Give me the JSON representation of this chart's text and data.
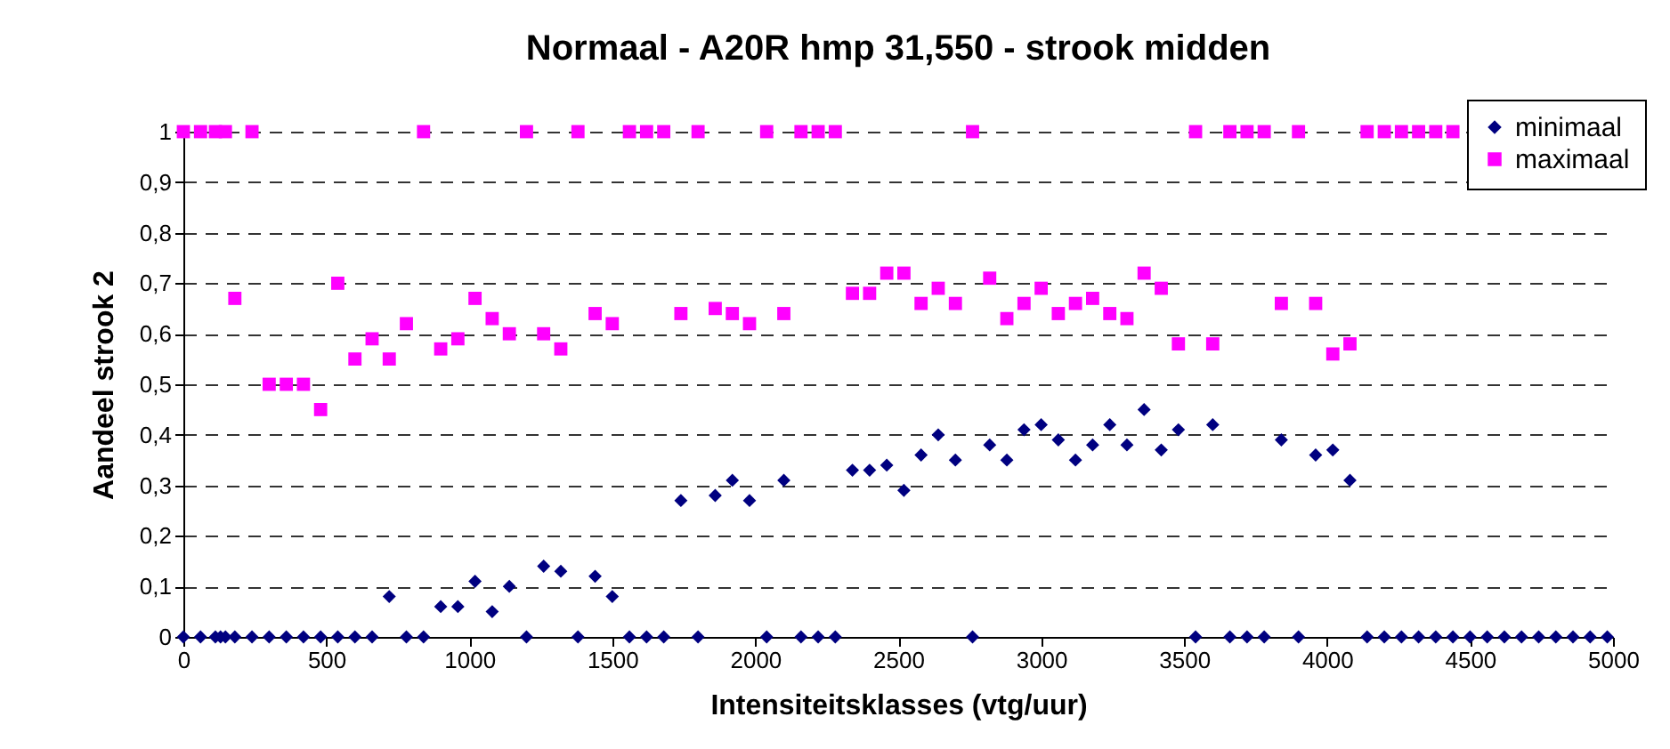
{
  "chart_data": {
    "type": "scatter",
    "title": "Normaal - A20R hmp 31,550 - strook midden",
    "xlabel": "Intensiteitsklasses (vtg/uur)",
    "ylabel": "Aandeel strook 2",
    "x": [
      0,
      60,
      112,
      130,
      147,
      180,
      240,
      300,
      360,
      420,
      480,
      540,
      600,
      660,
      720,
      780,
      840,
      900,
      960,
      1020,
      1080,
      1140,
      1200,
      1260,
      1320,
      1380,
      1440,
      1500,
      1560,
      1620,
      1680,
      1740,
      1800,
      1860,
      1920,
      1980,
      2040,
      2100,
      2160,
      2220,
      2280,
      2340,
      2400,
      2460,
      2520,
      2580,
      2640,
      2700,
      2760,
      2820,
      2880,
      2940,
      3000,
      3060,
      3120,
      3180,
      3240,
      3300,
      3360,
      3420,
      3480,
      3540,
      3600,
      3660,
      3720,
      3780,
      3840,
      3900,
      3960,
      4020,
      4080,
      4140,
      4200,
      4260,
      4320,
      4380,
      4440,
      4500,
      4560,
      4620,
      4680,
      4740,
      4800,
      4860,
      4920,
      4980
    ],
    "series": [
      {
        "name": "minimaal",
        "color": "#000080",
        "marker": "diamond",
        "values": [
          0,
          0,
          0,
          0,
          0,
          0,
          0,
          0,
          0,
          0,
          0,
          0,
          0,
          0,
          0.08,
          0,
          0,
          0.06,
          0.06,
          0.11,
          0.05,
          0.1,
          0,
          0.14,
          0.13,
          0,
          0.12,
          0.08,
          0,
          0,
          0,
          0.27,
          0,
          0.28,
          0.31,
          0.27,
          0,
          0.31,
          0,
          0,
          0,
          0.33,
          0.33,
          0.34,
          0.29,
          0.36,
          0.4,
          0.35,
          0,
          0.38,
          0.35,
          0.41,
          0.42,
          0.39,
          0.35,
          0.38,
          0.42,
          0.38,
          0.45,
          0.37,
          0.41,
          0,
          0.42,
          0,
          0,
          0,
          0.39,
          0,
          0.36,
          0.37,
          0.31,
          0,
          0,
          0,
          0,
          0,
          0,
          0,
          0,
          0,
          0,
          0,
          0,
          0,
          0,
          0
        ]
      },
      {
        "name": "maximaal",
        "color": "#ff00ff",
        "marker": "square",
        "values": [
          1,
          1,
          1,
          null,
          1,
          0.67,
          1,
          0.5,
          0.5,
          0.5,
          0.45,
          0.7,
          0.55,
          0.59,
          0.55,
          0.62,
          1,
          0.57,
          0.59,
          0.67,
          0.63,
          0.6,
          1,
          0.6,
          0.57,
          1,
          0.64,
          0.62,
          1,
          1,
          1,
          0.64,
          1,
          0.65,
          0.64,
          0.62,
          1,
          0.64,
          1,
          1,
          1,
          0.68,
          0.68,
          0.72,
          0.72,
          0.66,
          0.69,
          0.66,
          1,
          0.71,
          0.63,
          0.66,
          0.69,
          0.64,
          0.66,
          0.67,
          0.64,
          0.63,
          0.72,
          0.69,
          0.58,
          1,
          0.58,
          1,
          1,
          1,
          0.66,
          1,
          0.66,
          0.56,
          0.58,
          1,
          1,
          1,
          1,
          1,
          1,
          null,
          null,
          null,
          null,
          null,
          null,
          null,
          null,
          null
        ]
      }
    ],
    "xlim": [
      0,
      5000
    ],
    "xticks": [
      0,
      500,
      1000,
      1500,
      2000,
      2500,
      3000,
      3500,
      4000,
      4500,
      5000
    ],
    "ylim": [
      0,
      1
    ],
    "yticks": [
      {
        "value": 0,
        "label": "0"
      },
      {
        "value": 0.1,
        "label": "0,1"
      },
      {
        "value": 0.2,
        "label": "0,2"
      },
      {
        "value": 0.3,
        "label": "0,3"
      },
      {
        "value": 0.4,
        "label": "0,4"
      },
      {
        "value": 0.5,
        "label": "0,5"
      },
      {
        "value": 0.6,
        "label": "0,6"
      },
      {
        "value": 0.7,
        "label": "0,7"
      },
      {
        "value": 0.8,
        "label": "0,8"
      },
      {
        "value": 0.9,
        "label": "0,9"
      },
      {
        "value": 1,
        "label": "1"
      }
    ],
    "grid": "y",
    "legend": "top right"
  }
}
